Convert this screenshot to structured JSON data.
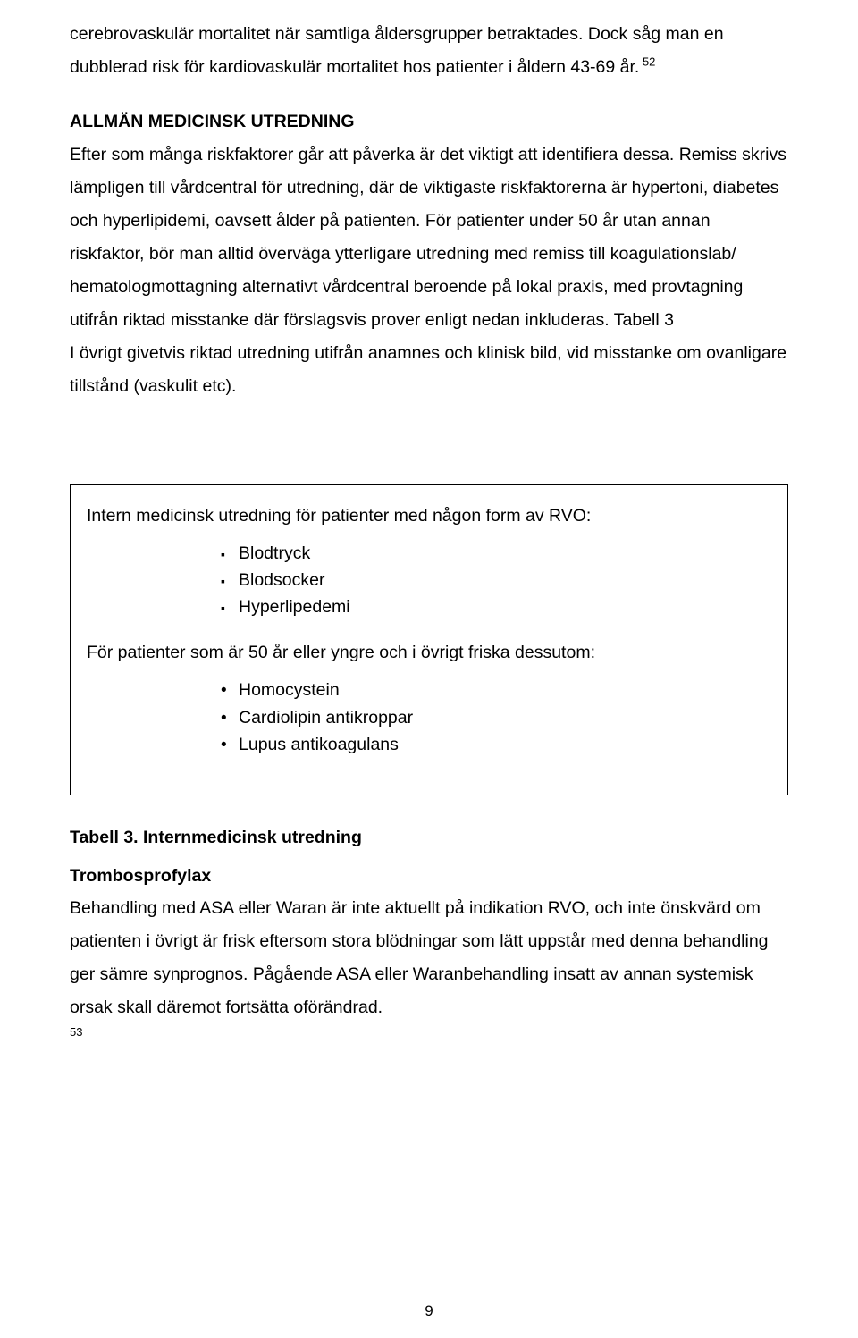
{
  "intro": {
    "p1_part1": "cerebrovaskulär mortalitet när samtliga åldersgrupper betraktades. Dock såg man en dubblerad risk för kardiovaskulär mortalitet hos patienter i åldern 43-69 år.",
    "p1_sup": " 52"
  },
  "section1": {
    "heading": "ALLMÄN MEDICINSK UTREDNING",
    "p1": "Efter som många riskfaktorer går att påverka är det viktigt att identifiera dessa. Remiss skrivs lämpligen till vårdcentral för utredning, där de viktigaste riskfaktorerna är hypertoni, diabetes och hyperlipidemi, oavsett ålder på patienten. För patienter under 50 år utan annan riskfaktor, bör man alltid överväga ytterligare utredning med remiss till koagulationslab/ hematologmottagning alternativt vårdcentral beroende på lokal praxis, med provtagning utifrån riktad misstanke där förslagsvis prover enligt nedan inkluderas. Tabell 3",
    "p2": "I övrigt givetvis riktad utredning utifrån anamnes och klinisk bild, vid misstanke om ovanligare tillstånd (vaskulit etc)."
  },
  "box": {
    "line1": "Intern medicinsk utredning för patienter med någon form av RVO:",
    "list1": [
      "Blodtryck",
      "Blodsocker",
      "Hyperlipedemi"
    ],
    "line2": "För patienter som är 50 år eller yngre och i övrigt friska dessutom:",
    "list2": [
      "Homocystein",
      "Cardiolipin antikroppar",
      "Lupus antikoagulans"
    ]
  },
  "tabell_caption": "Tabell 3. Internmedicinsk utredning",
  "section2": {
    "heading": "Trombosprofylax",
    "p1": " Behandling med ASA eller Waran är inte aktuellt på indikation RVO, och inte önskvärd om patienten i övrigt är frisk eftersom stora blödningar som lätt uppstår med denna behandling ger sämre synprognos. Pågående ASA eller Waranbehandling insatt av annan systemisk orsak skall däremot fortsätta oförändrad.",
    "ref": "53"
  },
  "page_number": "9"
}
